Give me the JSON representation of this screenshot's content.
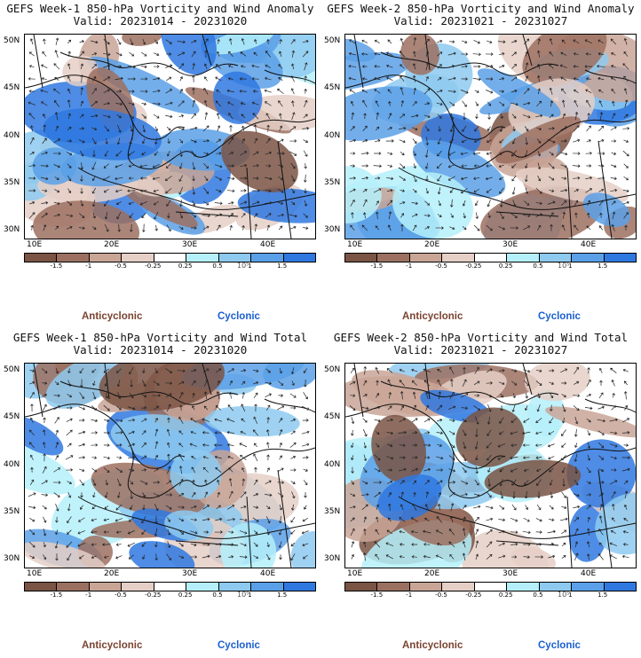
{
  "colors": {
    "land_brown_dark": "#7a5444",
    "brown": "#9c7060",
    "brown_light": "#c9a596",
    "brown_pale": "#e5cfc6",
    "white": "#ffffff",
    "cyan_pale": "#b5f0fa",
    "blue_light": "#8ecaf0",
    "blue": "#5aa0e8",
    "blue_dark": "#2f78e0",
    "anticyclonic_text": "#7a4330",
    "cyclonic_text": "#1a5fd0"
  },
  "colorbar": {
    "colors": [
      "#7a5444",
      "#9c7060",
      "#c9a596",
      "#e5cfc6",
      "#ffffff",
      "#b5f0fa",
      "#8ecaf0",
      "#5aa0e8",
      "#2f78e0"
    ],
    "labels": [
      "-1.5",
      "-1",
      "-0.5",
      "-0.25",
      "0.25",
      "0.5",
      "1",
      "1.5"
    ],
    "unit": "10⁵"
  },
  "axes": {
    "y_ticks": [
      "50N",
      "45N",
      "40N",
      "35N",
      "30N"
    ],
    "x_ticks": [
      "10E",
      "20E",
      "30E",
      "40E"
    ]
  },
  "legend": {
    "anticyclonic": "Anticyclonic",
    "cyclonic": "Cyclonic"
  },
  "panels": [
    {
      "title": "GEFS Week-1 850-hPa Vorticity and Wind Anomaly",
      "valid": "Valid: 20231014 - 20231020",
      "seed": 11
    },
    {
      "title": "GEFS Week-2 850-hPa Vorticity and Wind Anomaly",
      "valid": "Valid: 20231021 - 20231027",
      "seed": 23
    },
    {
      "title": "GEFS Week-1 850-hPa Vorticity and Wind Total",
      "valid": "Valid: 20231014 - 20231020",
      "seed": 37
    },
    {
      "title": "GEFS Week-2 850-hPa Vorticity and Wind Total",
      "valid": "Valid: 20231021 - 20231027",
      "seed": 53
    }
  ]
}
